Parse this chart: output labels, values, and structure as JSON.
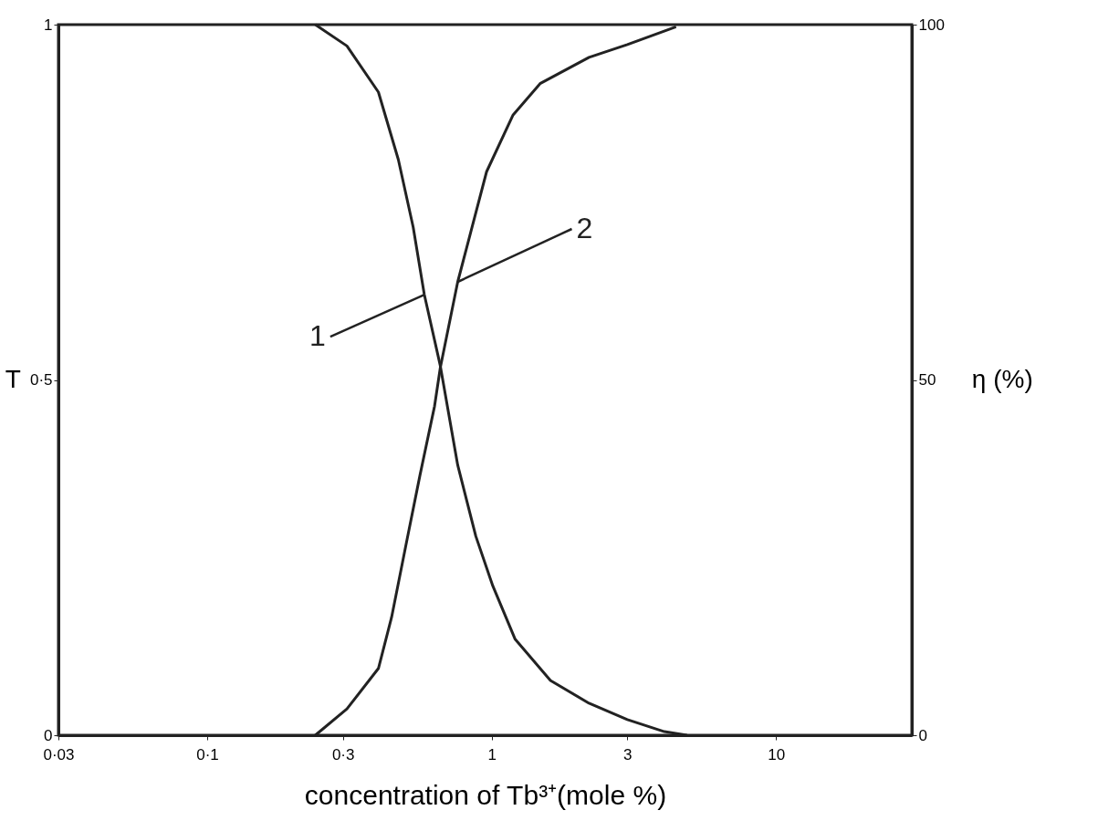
{
  "chart_data": {
    "type": "line",
    "xlabel": "concentration of Tb³⁺(mole %)",
    "ylabel": "T",
    "y2label": "η (%)",
    "log": "x",
    "xlim": [
      0.03,
      30
    ],
    "xticks": [
      {
        "value": 0.03,
        "label": "0·03"
      },
      {
        "value": 0.1,
        "label": "0·1"
      },
      {
        "value": 0.3,
        "label": "0·3"
      },
      1,
      3,
      10
    ],
    "ylim": [
      0,
      1
    ],
    "yticks": [
      0,
      {
        "value": 0.5,
        "label": "0·5"
      },
      1
    ],
    "y2lim": [
      0,
      100
    ],
    "y2ticks": [
      0,
      50,
      100
    ],
    "annotations": [
      {
        "text": "1",
        "x": 0.58,
        "y": 0.62
      },
      {
        "text": "2",
        "x": 0.76,
        "y": 0.638
      }
    ],
    "grid": false,
    "marker": "none",
    "line_style": "solid",
    "series": [
      {
        "color": "#222222",
        "x": [
          0.24,
          0.31,
          0.4,
          0.47,
          0.53,
          0.58,
          0.66,
          0.76,
          0.88,
          1.01,
          1.21,
          1.61,
          2.2,
          3.0,
          4.05,
          4.86
        ],
        "values": [
          1.0,
          0.97,
          0.905,
          0.81,
          0.715,
          0.62,
          0.52,
          0.38,
          0.28,
          0.21,
          0.135,
          0.077,
          0.045,
          0.022,
          0.005,
          0.0
        ]
      },
      {
        "color": "#222222",
        "axis": "y2",
        "x": [
          0.24,
          0.31,
          0.4,
          0.445,
          0.5,
          0.56,
          0.63,
          0.66,
          0.76,
          0.96,
          1.19,
          1.48,
          2.2,
          3.0,
          4.45
        ],
        "values": [
          0,
          3.7,
          9.4,
          16.6,
          26.8,
          36.6,
          46.3,
          51.7,
          63.8,
          79.3,
          87.3,
          91.7,
          95.4,
          97.2,
          99.7
        ]
      }
    ]
  }
}
